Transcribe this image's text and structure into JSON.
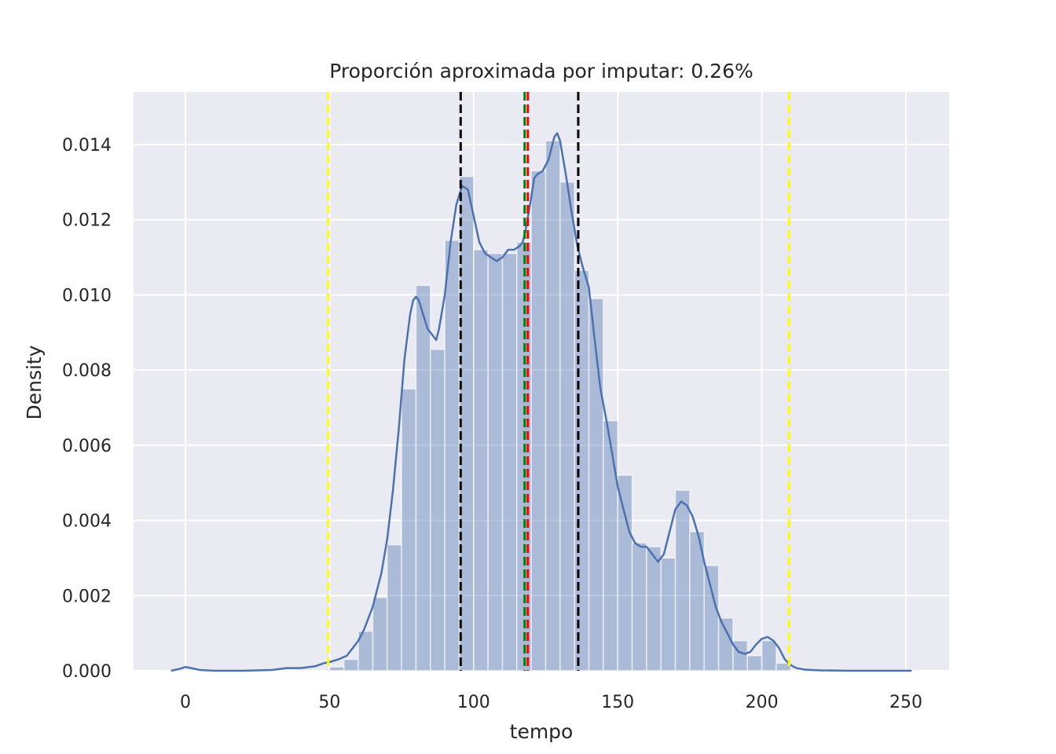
{
  "chart_data": {
    "type": "bar",
    "title": "Proporción aproximada por imputar: 0.26%",
    "xlabel": "tempo",
    "ylabel": "Density",
    "xlim": [
      -18,
      265
    ],
    "ylim": [
      0,
      0.0154
    ],
    "xticks": [
      0,
      50,
      100,
      150,
      200,
      250
    ],
    "xtick_labels": [
      "0",
      "50",
      "100",
      "150",
      "200",
      "250"
    ],
    "yticks": [
      0,
      0.002,
      0.004,
      0.006,
      0.008,
      0.01,
      0.012,
      0.014
    ],
    "ytick_labels": [
      "0.000",
      "0.002",
      "0.004",
      "0.006",
      "0.008",
      "0.010",
      "0.012",
      "0.014"
    ],
    "grid": true,
    "histogram": {
      "bin_width": 5,
      "bins_start": [
        50,
        55,
        60,
        65,
        70,
        75,
        80,
        85,
        90,
        95,
        100,
        105,
        110,
        115,
        120,
        125,
        130,
        135,
        140,
        145,
        150,
        155,
        160,
        165,
        170,
        175,
        180,
        185,
        190,
        195,
        200,
        205
      ],
      "density": [
        0.0001,
        0.0003,
        0.00105,
        0.00195,
        0.00335,
        0.0075,
        0.01025,
        0.00855,
        0.01145,
        0.01315,
        0.0112,
        0.0111,
        0.0111,
        0.0114,
        0.0133,
        0.0141,
        0.013,
        0.01065,
        0.0099,
        0.00665,
        0.0052,
        0.0034,
        0.0033,
        0.003,
        0.0048,
        0.0037,
        0.0028,
        0.0014,
        0.0008,
        0.0004,
        0.0008,
        0.0002
      ]
    },
    "kde": {
      "x": [
        -5,
        -2,
        0,
        2,
        5,
        10,
        20,
        30,
        35,
        40,
        45,
        48,
        50,
        53,
        56,
        58,
        60,
        62,
        65,
        68,
        70,
        72,
        74,
        76,
        78,
        79,
        80,
        81,
        82,
        84,
        86,
        87,
        88,
        90,
        92,
        94,
        96,
        98,
        100,
        102,
        104,
        106,
        108,
        110,
        112,
        114,
        116,
        117,
        118,
        120,
        121,
        122,
        124,
        126,
        127,
        128,
        129,
        130,
        132,
        134,
        136,
        138,
        140,
        142,
        144,
        146,
        148,
        150,
        152,
        154,
        156,
        158,
        160,
        162,
        164,
        166,
        168,
        170,
        172,
        174,
        176,
        178,
        180,
        182,
        184,
        186,
        188,
        190,
        192,
        194,
        196,
        198,
        200,
        202,
        204,
        206,
        208,
        210,
        212,
        215,
        220,
        230,
        240,
        252
      ],
      "y": [
        0.0,
        5e-05,
        0.0001,
        7e-05,
        2e-05,
        0.0,
        0.0,
        2e-05,
        7e-05,
        7e-05,
        0.00012,
        0.0002,
        0.00023,
        0.0003,
        0.0004,
        0.0006,
        0.0008,
        0.0011,
        0.0017,
        0.0026,
        0.0035,
        0.0048,
        0.0064,
        0.0083,
        0.0095,
        0.00985,
        0.00995,
        0.00985,
        0.0096,
        0.0091,
        0.0089,
        0.0088,
        0.0091,
        0.01,
        0.0114,
        0.0124,
        0.0129,
        0.0128,
        0.0121,
        0.0114,
        0.0111,
        0.011,
        0.0109,
        0.011,
        0.0112,
        0.0112,
        0.0113,
        0.0114,
        0.0117,
        0.0126,
        0.0131,
        0.0132,
        0.0133,
        0.0136,
        0.0139,
        0.0142,
        0.0143,
        0.0141,
        0.0132,
        0.0122,
        0.0113,
        0.0107,
        0.0102,
        0.0088,
        0.0075,
        0.0067,
        0.0058,
        0.0049,
        0.0043,
        0.0037,
        0.0034,
        0.0033,
        0.0033,
        0.0031,
        0.0029,
        0.0031,
        0.0037,
        0.0043,
        0.0045,
        0.0044,
        0.0041,
        0.0036,
        0.0029,
        0.0023,
        0.0017,
        0.0013,
        0.001,
        0.0007,
        0.0005,
        0.00045,
        0.0005,
        0.0007,
        0.00085,
        0.0009,
        0.0008,
        0.0006,
        0.0003,
        0.00015,
        7e-05,
        3e-05,
        1e-05,
        0.0,
        0.0,
        0.0
      ]
    },
    "vlines": [
      {
        "x": 49.5,
        "color": "#ffff00",
        "style": "dashed"
      },
      {
        "x": 209.5,
        "color": "#ffff00",
        "style": "dashed"
      },
      {
        "x": 95.5,
        "color": "#000000",
        "style": "dashed"
      },
      {
        "x": 136.3,
        "color": "#000000",
        "style": "dashed"
      },
      {
        "x": 117.7,
        "color": "#008000",
        "style": "dashed"
      },
      {
        "x": 118.8,
        "color": "#ff0000",
        "style": "dashed"
      }
    ],
    "colors": {
      "hist_fill": "#4c72b0",
      "kde_line": "#4c72b0",
      "plot_background": "#eaeaf2",
      "grid": "#ffffff"
    }
  }
}
